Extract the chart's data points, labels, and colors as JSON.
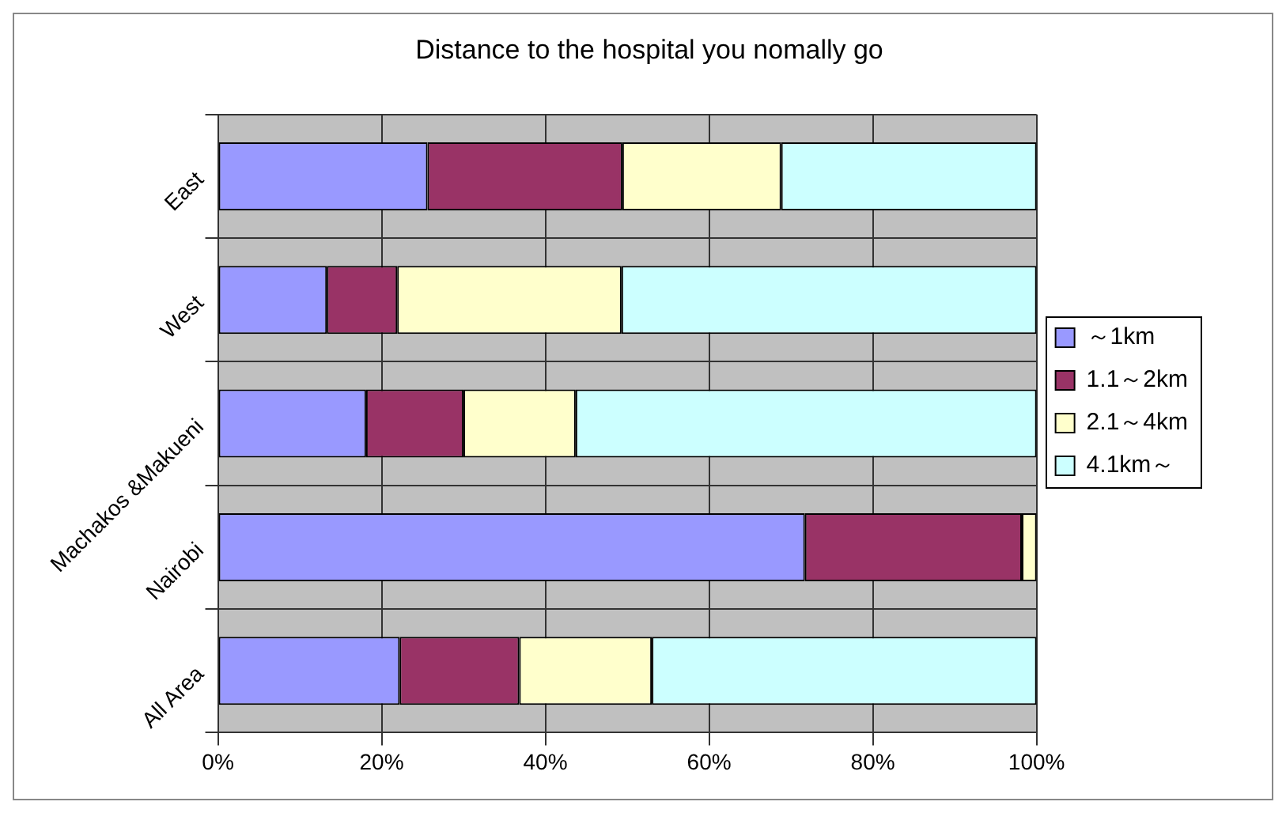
{
  "chart_data": {
    "type": "bar",
    "orientation": "horizontal",
    "stacked": true,
    "title": "Distance to the hospital you nomally go",
    "categories": [
      "East",
      "West",
      "Machakos &Makueni",
      "Nairobi",
      "All Area"
    ],
    "series": [
      {
        "name": "～1km",
        "color": "#9999ff",
        "values": [
          25.6,
          13.3,
          18.1,
          71.7,
          22.2
        ]
      },
      {
        "name": "1.1～2km",
        "color": "#993366",
        "values": [
          23.8,
          8.6,
          11.9,
          26.5,
          14.6
        ]
      },
      {
        "name": "2.1～4km",
        "color": "#ffffcc",
        "values": [
          19.4,
          27.4,
          13.7,
          1.8,
          16.2
        ]
      },
      {
        "name": "4.1km～",
        "color": "#ccffff",
        "values": [
          31.2,
          50.7,
          56.3,
          0,
          47.0
        ]
      }
    ],
    "xlim": [
      0,
      100
    ],
    "xticks": [
      {
        "value": 0,
        "label": "0%"
      },
      {
        "value": 20,
        "label": "20%"
      },
      {
        "value": 40,
        "label": "40%"
      },
      {
        "value": 60,
        "label": "60%"
      },
      {
        "value": 80,
        "label": "80%"
      },
      {
        "value": 100,
        "label": "100%"
      }
    ],
    "grid": true,
    "legend": "right"
  }
}
